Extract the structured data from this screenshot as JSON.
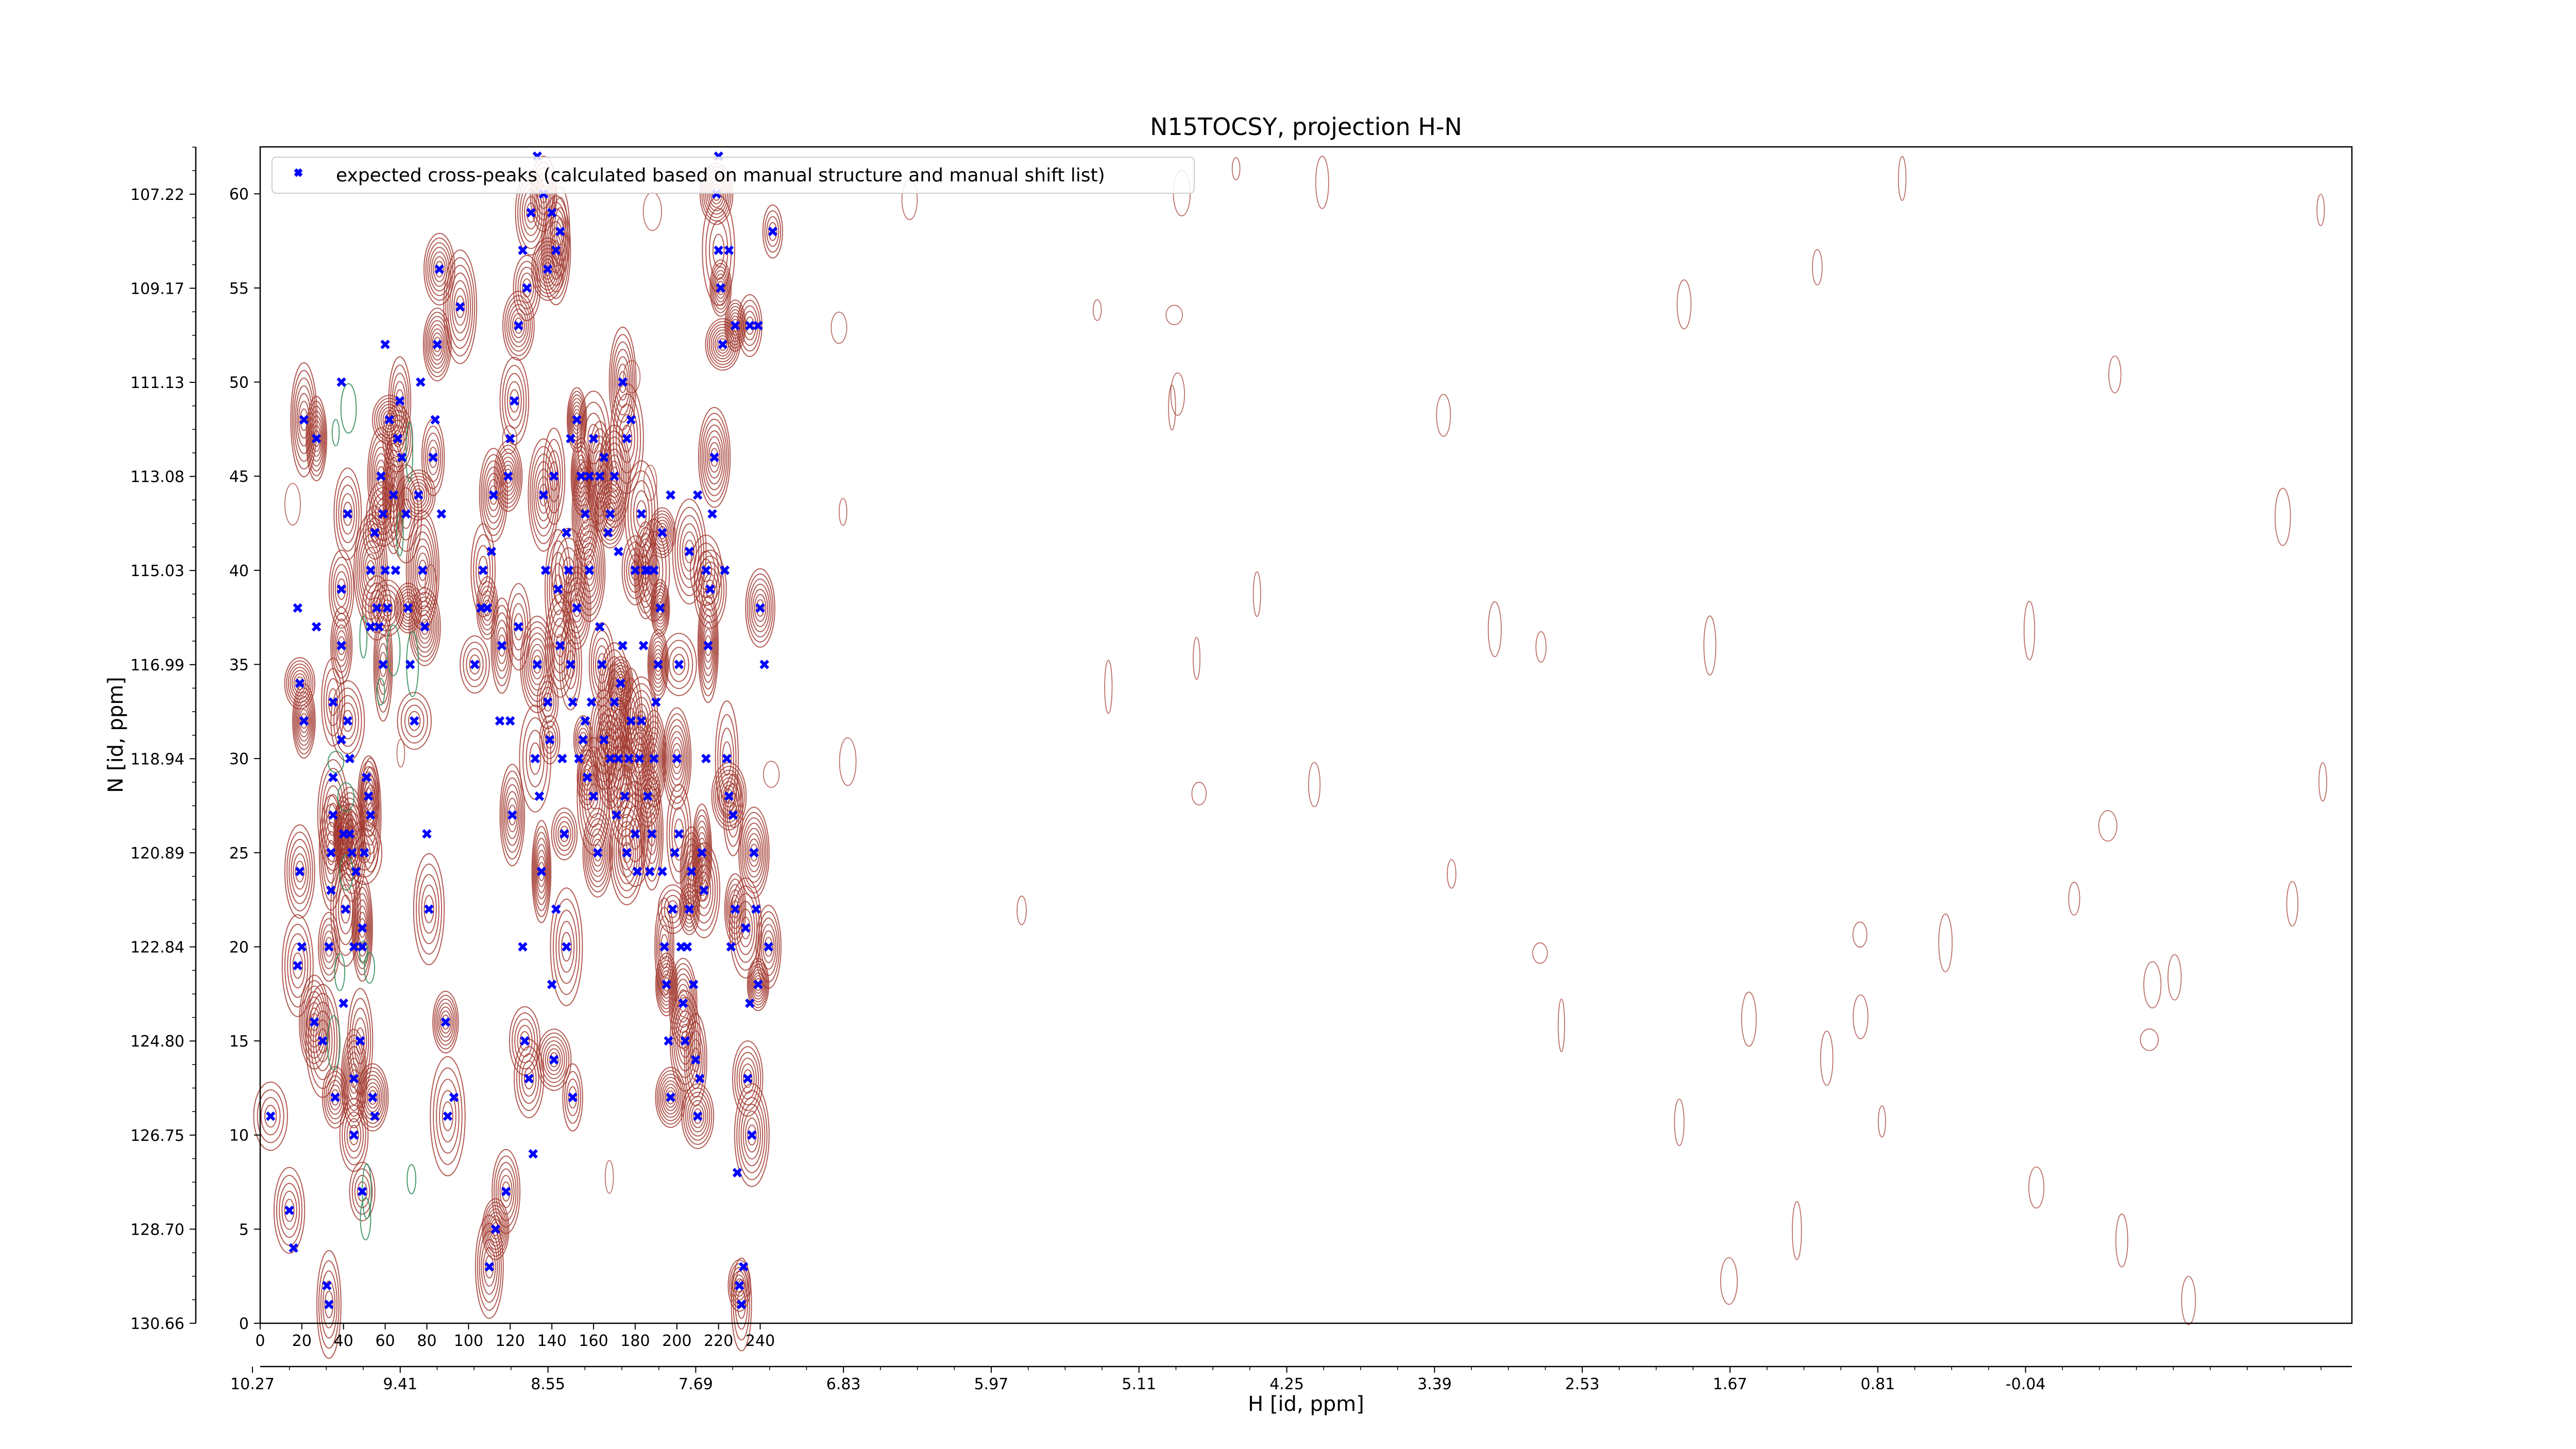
{
  "chart_data": {
    "type": "scatter",
    "title": "N15TOCSY, projection H-N",
    "xlabel": "H [id, ppm]",
    "ylabel": "N [id, ppm]",
    "x_index_ticks": [
      "0",
      "20",
      "40",
      "60",
      "80",
      "100",
      "120",
      "140",
      "160",
      "180",
      "200",
      "220",
      "240"
    ],
    "x_ppm_ticks": [
      "10.27",
      "9.41",
      "8.55",
      "7.69",
      "6.83",
      "5.97",
      "5.11",
      "4.25",
      "3.39",
      "2.53",
      "1.67",
      "0.81",
      "-0.04"
    ],
    "y_index_ticks": [
      "0",
      "5",
      "10",
      "15",
      "20",
      "25",
      "30",
      "35",
      "40",
      "45",
      "50",
      "55",
      "60"
    ],
    "y_ppm_ticks": [
      "130.66",
      "128.70",
      "126.75",
      "124.80",
      "122.84",
      "120.89",
      "118.94",
      "116.99",
      "115.03",
      "113.08",
      "111.13",
      "109.17",
      "107.22"
    ],
    "xlim": [
      0,
      255
    ],
    "ylim": [
      0,
      62.5
    ],
    "legend": {
      "location": "top-left",
      "entries": [
        "expected cross-peaks (calculated based on manual structure and manual shift list)"
      ]
    },
    "colors": {
      "points": "#0000ff",
      "positive_contours": "#a0352a",
      "negative_contours": "#2e8b57"
    },
    "series": [
      {
        "name": "expected cross-peaks (calculated based on manual structure and manual shift list)",
        "points": [
          [
            5,
            11
          ],
          [
            14,
            6
          ],
          [
            16,
            4
          ],
          [
            18,
            19
          ],
          [
            19,
            24
          ],
          [
            20,
            20
          ],
          [
            21,
            32
          ],
          [
            19,
            34
          ],
          [
            18,
            38
          ],
          [
            21,
            48
          ],
          [
            27,
            47
          ],
          [
            27,
            37
          ],
          [
            26,
            16
          ],
          [
            30,
            15
          ],
          [
            32,
            2
          ],
          [
            33,
            1
          ],
          [
            33,
            20
          ],
          [
            34,
            23
          ],
          [
            34,
            25
          ],
          [
            35,
            27
          ],
          [
            35,
            29
          ],
          [
            35,
            33
          ],
          [
            36,
            12
          ],
          [
            39,
            31
          ],
          [
            40,
            26
          ],
          [
            41,
            22
          ],
          [
            40,
            17
          ],
          [
            39,
            36
          ],
          [
            39,
            39
          ],
          [
            39,
            50
          ],
          [
            42,
            43
          ],
          [
            42,
            32
          ],
          [
            43,
            30
          ],
          [
            43,
            26
          ],
          [
            44,
            25
          ],
          [
            45,
            20
          ],
          [
            45,
            13
          ],
          [
            45,
            10
          ],
          [
            46,
            24
          ],
          [
            48,
            15
          ],
          [
            49,
            21
          ],
          [
            49,
            20
          ],
          [
            49,
            7
          ],
          [
            50,
            25
          ],
          [
            51,
            29
          ],
          [
            52,
            28
          ],
          [
            53,
            27
          ],
          [
            53,
            37
          ],
          [
            53,
            40
          ],
          [
            54,
            12
          ],
          [
            55,
            11
          ],
          [
            55,
            42
          ],
          [
            56,
            38
          ],
          [
            57,
            37
          ],
          [
            58,
            45
          ],
          [
            59,
            43
          ],
          [
            60,
            40
          ],
          [
            61,
            38
          ],
          [
            59,
            35
          ],
          [
            60,
            52
          ],
          [
            62,
            48
          ],
          [
            64,
            44
          ],
          [
            65,
            40
          ],
          [
            66,
            47
          ],
          [
            67,
            49
          ],
          [
            68,
            46
          ],
          [
            70,
            43
          ],
          [
            71,
            38
          ],
          [
            72,
            35
          ],
          [
            74,
            32
          ],
          [
            76,
            44
          ],
          [
            77,
            50
          ],
          [
            78,
            40
          ],
          [
            79,
            37
          ],
          [
            80,
            26
          ],
          [
            81,
            22
          ],
          [
            83,
            46
          ],
          [
            84,
            48
          ],
          [
            85,
            52
          ],
          [
            86,
            56
          ],
          [
            87,
            43
          ],
          [
            89,
            16
          ],
          [
            90,
            11
          ],
          [
            93,
            12
          ],
          [
            96,
            54
          ],
          [
            103,
            35
          ],
          [
            106,
            38
          ],
          [
            110,
            3
          ],
          [
            113,
            5
          ],
          [
            115,
            32
          ],
          [
            116,
            36
          ],
          [
            118,
            7
          ],
          [
            120,
            32
          ],
          [
            121,
            27
          ],
          [
            124,
            37
          ],
          [
            126,
            20
          ],
          [
            127,
            15
          ],
          [
            129,
            13
          ],
          [
            131,
            9
          ],
          [
            132,
            30
          ],
          [
            133,
            35
          ],
          [
            134,
            28
          ],
          [
            135,
            24
          ],
          [
            136,
            44
          ],
          [
            137,
            40
          ],
          [
            138,
            33
          ],
          [
            139,
            31
          ],
          [
            140,
            18
          ],
          [
            141,
            14
          ],
          [
            141,
            45
          ],
          [
            142,
            22
          ],
          [
            143,
            39
          ],
          [
            144,
            36
          ],
          [
            145,
            30
          ],
          [
            146,
            26
          ],
          [
            147,
            20
          ],
          [
            147,
            42
          ],
          [
            148,
            40
          ],
          [
            149,
            35
          ],
          [
            150,
            33
          ],
          [
            150,
            12
          ],
          [
            152,
            38
          ],
          [
            153,
            30
          ],
          [
            154,
            45
          ],
          [
            155,
            31
          ],
          [
            156,
            32
          ],
          [
            157,
            29
          ],
          [
            158,
            40
          ],
          [
            159,
            33
          ],
          [
            160,
            28
          ],
          [
            162,
            25
          ],
          [
            163,
            37
          ],
          [
            164,
            35
          ],
          [
            165,
            31
          ],
          [
            167,
            42
          ],
          [
            168,
            30
          ],
          [
            170,
            33
          ],
          [
            171,
            27
          ],
          [
            172,
            30
          ],
          [
            173,
            34
          ],
          [
            174,
            36
          ],
          [
            175,
            28
          ],
          [
            176,
            25
          ],
          [
            177,
            30
          ],
          [
            178,
            32
          ],
          [
            180,
            26
          ],
          [
            181,
            24
          ],
          [
            182,
            30
          ],
          [
            183,
            32
          ],
          [
            184,
            36
          ],
          [
            185,
            40
          ],
          [
            186,
            28
          ],
          [
            187,
            24
          ],
          [
            188,
            26
          ],
          [
            189,
            30
          ],
          [
            190,
            33
          ],
          [
            191,
            35
          ],
          [
            192,
            38
          ],
          [
            193,
            24
          ],
          [
            194,
            20
          ],
          [
            195,
            18
          ],
          [
            196,
            15
          ],
          [
            197,
            12
          ],
          [
            198,
            22
          ],
          [
            199,
            25
          ],
          [
            200,
            30
          ],
          [
            201,
            26
          ],
          [
            202,
            20
          ],
          [
            203,
            17
          ],
          [
            204,
            15
          ],
          [
            205,
            20
          ],
          [
            206,
            22
          ],
          [
            207,
            24
          ],
          [
            208,
            18
          ],
          [
            209,
            14
          ],
          [
            210,
            11
          ],
          [
            211,
            13
          ],
          [
            212,
            25
          ],
          [
            213,
            23
          ],
          [
            214,
            30
          ],
          [
            215,
            36
          ],
          [
            216,
            39
          ],
          [
            217,
            43
          ],
          [
            218,
            46
          ],
          [
            219,
            60
          ],
          [
            220,
            62
          ],
          [
            221,
            55
          ],
          [
            222,
            52
          ],
          [
            223,
            40
          ],
          [
            224,
            30
          ],
          [
            225,
            28
          ],
          [
            226,
            20
          ],
          [
            227,
            27
          ],
          [
            228,
            22
          ],
          [
            229,
            8
          ],
          [
            230,
            2
          ],
          [
            231,
            1
          ],
          [
            232,
            3
          ],
          [
            233,
            21
          ],
          [
            234,
            13
          ],
          [
            235,
            17
          ],
          [
            236,
            10
          ],
          [
            237,
            25
          ],
          [
            238,
            22
          ],
          [
            239,
            18
          ],
          [
            240,
            38
          ],
          [
            242,
            35
          ],
          [
            244,
            20
          ],
          [
            246,
            58
          ],
          [
            239,
            53
          ],
          [
            235,
            53
          ],
          [
            228,
            53
          ],
          [
            225,
            57
          ],
          [
            220,
            57
          ],
          [
            214,
            40
          ],
          [
            210,
            44
          ],
          [
            206,
            41
          ],
          [
            201,
            35
          ],
          [
            197,
            44
          ],
          [
            193,
            42
          ],
          [
            189,
            40
          ],
          [
            186,
            40
          ],
          [
            183,
            43
          ],
          [
            180,
            40
          ],
          [
            178,
            48
          ],
          [
            176,
            47
          ],
          [
            174,
            50
          ],
          [
            172,
            41
          ],
          [
            170,
            45
          ],
          [
            168,
            43
          ],
          [
            165,
            46
          ],
          [
            163,
            45
          ],
          [
            160,
            47
          ],
          [
            158,
            45
          ],
          [
            156,
            43
          ],
          [
            152,
            48
          ],
          [
            149,
            47
          ],
          [
            144,
            58
          ],
          [
            142,
            57
          ],
          [
            140,
            59
          ],
          [
            138,
            56
          ],
          [
            136,
            60
          ],
          [
            133,
            62
          ],
          [
            130,
            59
          ],
          [
            128,
            55
          ],
          [
            126,
            57
          ],
          [
            124,
            53
          ],
          [
            122,
            49
          ],
          [
            120,
            47
          ],
          [
            119,
            45
          ],
          [
            112,
            44
          ],
          [
            111,
            41
          ],
          [
            109,
            38
          ],
          [
            107,
            40
          ]
        ]
      }
    ]
  }
}
